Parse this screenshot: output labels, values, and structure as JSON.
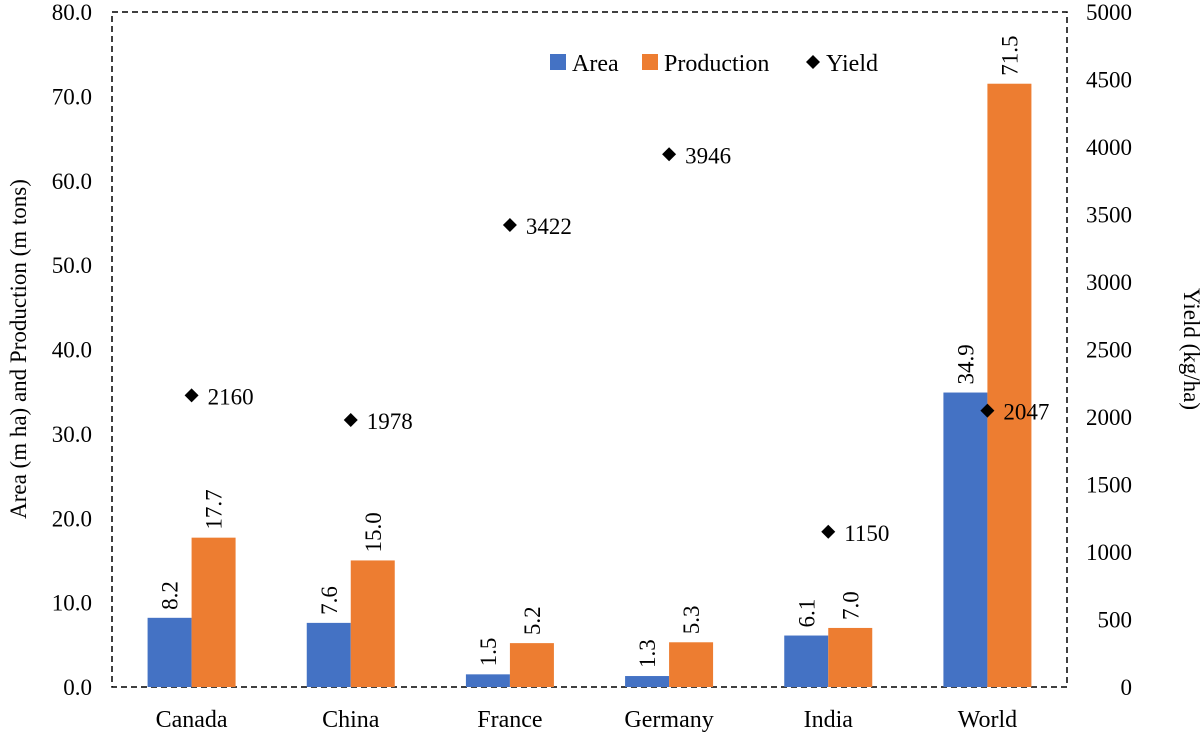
{
  "chart_data": {
    "type": "bar",
    "title": "",
    "categories": [
      "Canada",
      "China",
      "France",
      "Germany",
      "India",
      "World"
    ],
    "series": [
      {
        "name": "Area",
        "axis": "left",
        "kind": "bar",
        "color": "#4472C4",
        "values": [
          8.2,
          7.6,
          1.5,
          1.3,
          6.1,
          34.9
        ]
      },
      {
        "name": "Production",
        "axis": "left",
        "kind": "bar",
        "color": "#ED7D31",
        "values": [
          17.7,
          15.0,
          5.2,
          5.3,
          7.0,
          71.5
        ]
      },
      {
        "name": "Yield",
        "axis": "right",
        "kind": "marker",
        "marker": "diamond",
        "color": "#000000",
        "values": [
          2160,
          1978,
          3422,
          3946,
          1150,
          2047
        ]
      }
    ],
    "y_left": {
      "label": "Area (m ha) and Production (m tons)",
      "min": 0,
      "max": 80,
      "step": 10,
      "ticks": [
        "0.0",
        "10.0",
        "20.0",
        "30.0",
        "40.0",
        "50.0",
        "60.0",
        "70.0",
        "80.0"
      ]
    },
    "y_right": {
      "label": "Yield (kg/ha)",
      "min": 0,
      "max": 5000,
      "step": 500,
      "ticks": [
        "0",
        "500",
        "1000",
        "1500",
        "2000",
        "2500",
        "3000",
        "3500",
        "4000",
        "4500",
        "5000"
      ]
    },
    "bar_labels": {
      "Area": [
        "8.2",
        "7.6",
        "1.5",
        "1.3",
        "6.1",
        "34.9"
      ],
      "Production": [
        "17.7",
        "15.0",
        "5.2",
        "5.3",
        "7.0",
        "71.5"
      ]
    },
    "yield_labels": [
      "2160",
      "1978",
      "3422",
      "3946",
      "1150",
      "2047"
    ],
    "legend": {
      "position": "top",
      "entries": [
        "Area",
        "Production",
        "Yield"
      ]
    },
    "grid": false,
    "plot_border": "dashed"
  }
}
